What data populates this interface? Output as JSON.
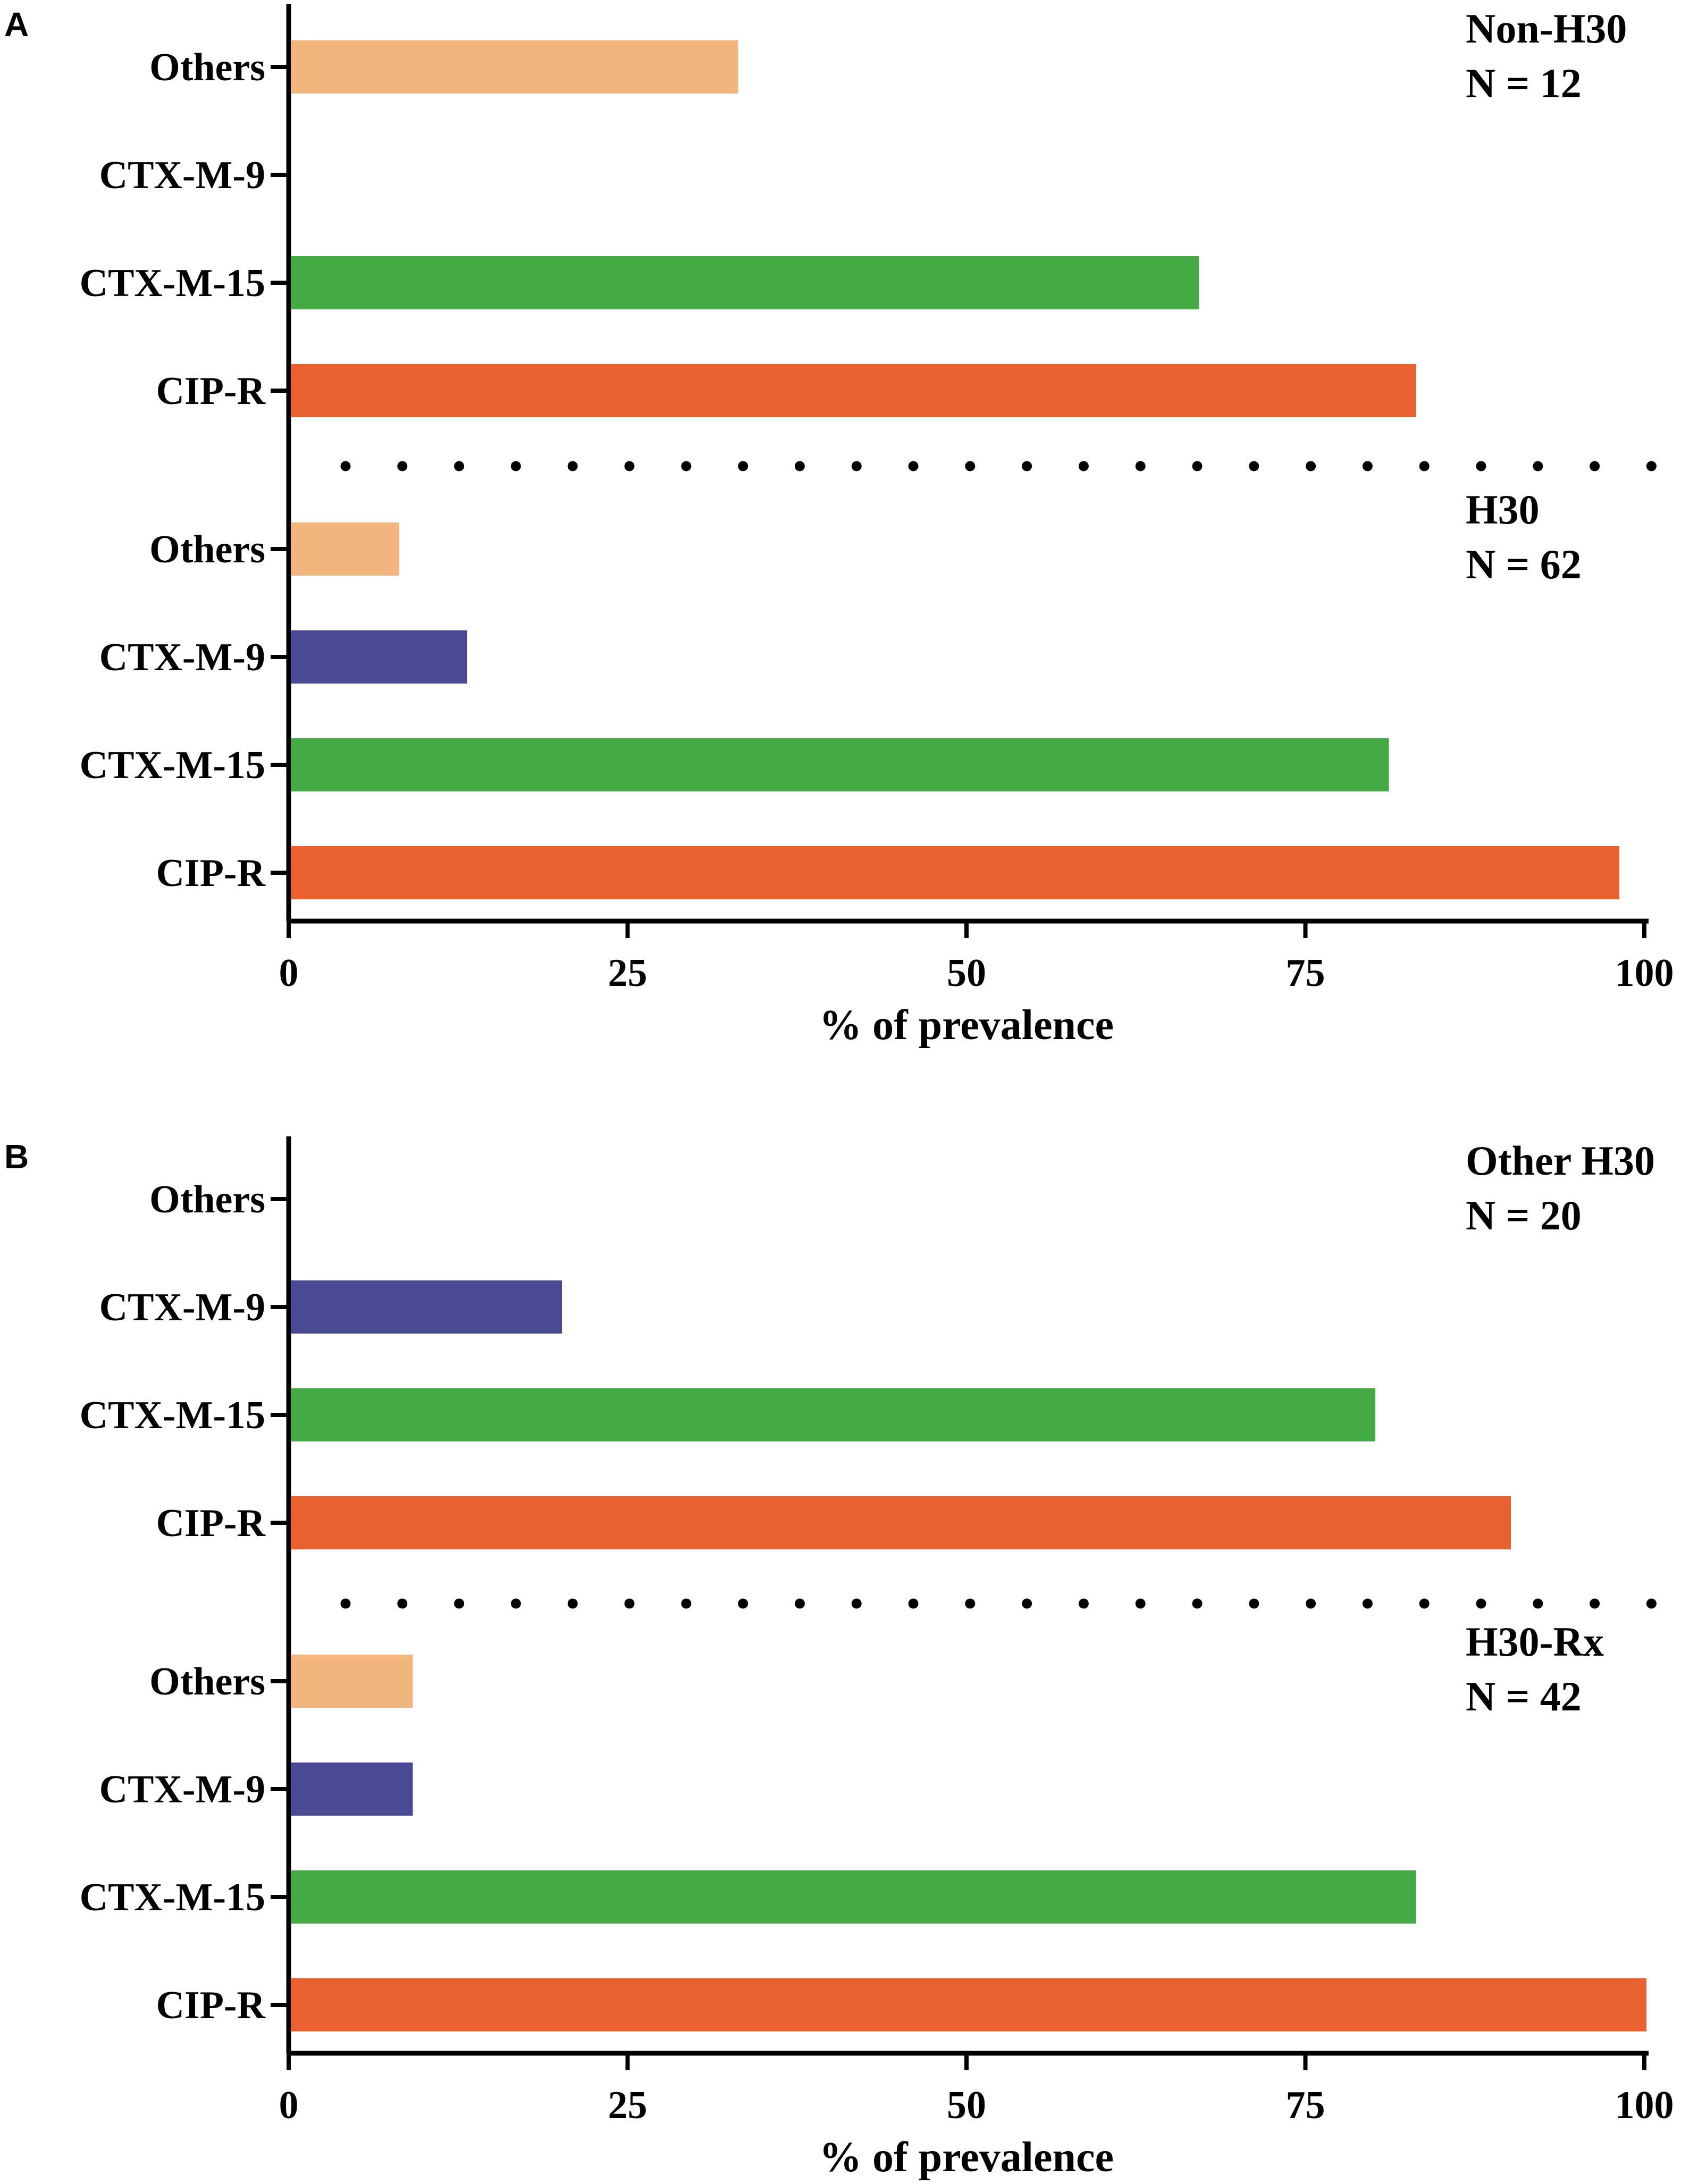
{
  "colors": {
    "Others": "#F2B57E",
    "CTX-M-9": "#4A4993",
    "CTX-M-15": "#44AA44",
    "CIP-R": "#E8612F",
    "axis": "#000000"
  },
  "chart_data": [
    {
      "type": "bar",
      "orientation": "horizontal",
      "panel": "A",
      "xlabel": "% of prevalence",
      "xlim": [
        0,
        100
      ],
      "xticks": [
        0,
        25,
        50,
        75,
        100
      ],
      "categories": [
        "Others",
        "CTX-M-9",
        "CTX-M-15",
        "CIP-R"
      ],
      "groups": [
        {
          "name": "Non-H30",
          "n_label": "N = 12",
          "values": [
            33,
            0,
            67,
            83
          ]
        },
        {
          "name": "H30",
          "n_label": "N = 62",
          "values": [
            8,
            13,
            81,
            98
          ]
        }
      ]
    },
    {
      "type": "bar",
      "orientation": "horizontal",
      "panel": "B",
      "xlabel": "% of prevalence",
      "xlim": [
        0,
        100
      ],
      "xticks": [
        0,
        25,
        50,
        75,
        100
      ],
      "categories": [
        "Others",
        "CTX-M-9",
        "CTX-M-15",
        "CIP-R"
      ],
      "groups": [
        {
          "name": "Other H30",
          "n_label": "N = 20",
          "values": [
            0,
            20,
            80,
            90
          ]
        },
        {
          "name": "H30-Rx",
          "n_label": "N = 42",
          "values": [
            9,
            9,
            83,
            100
          ]
        }
      ]
    }
  ]
}
